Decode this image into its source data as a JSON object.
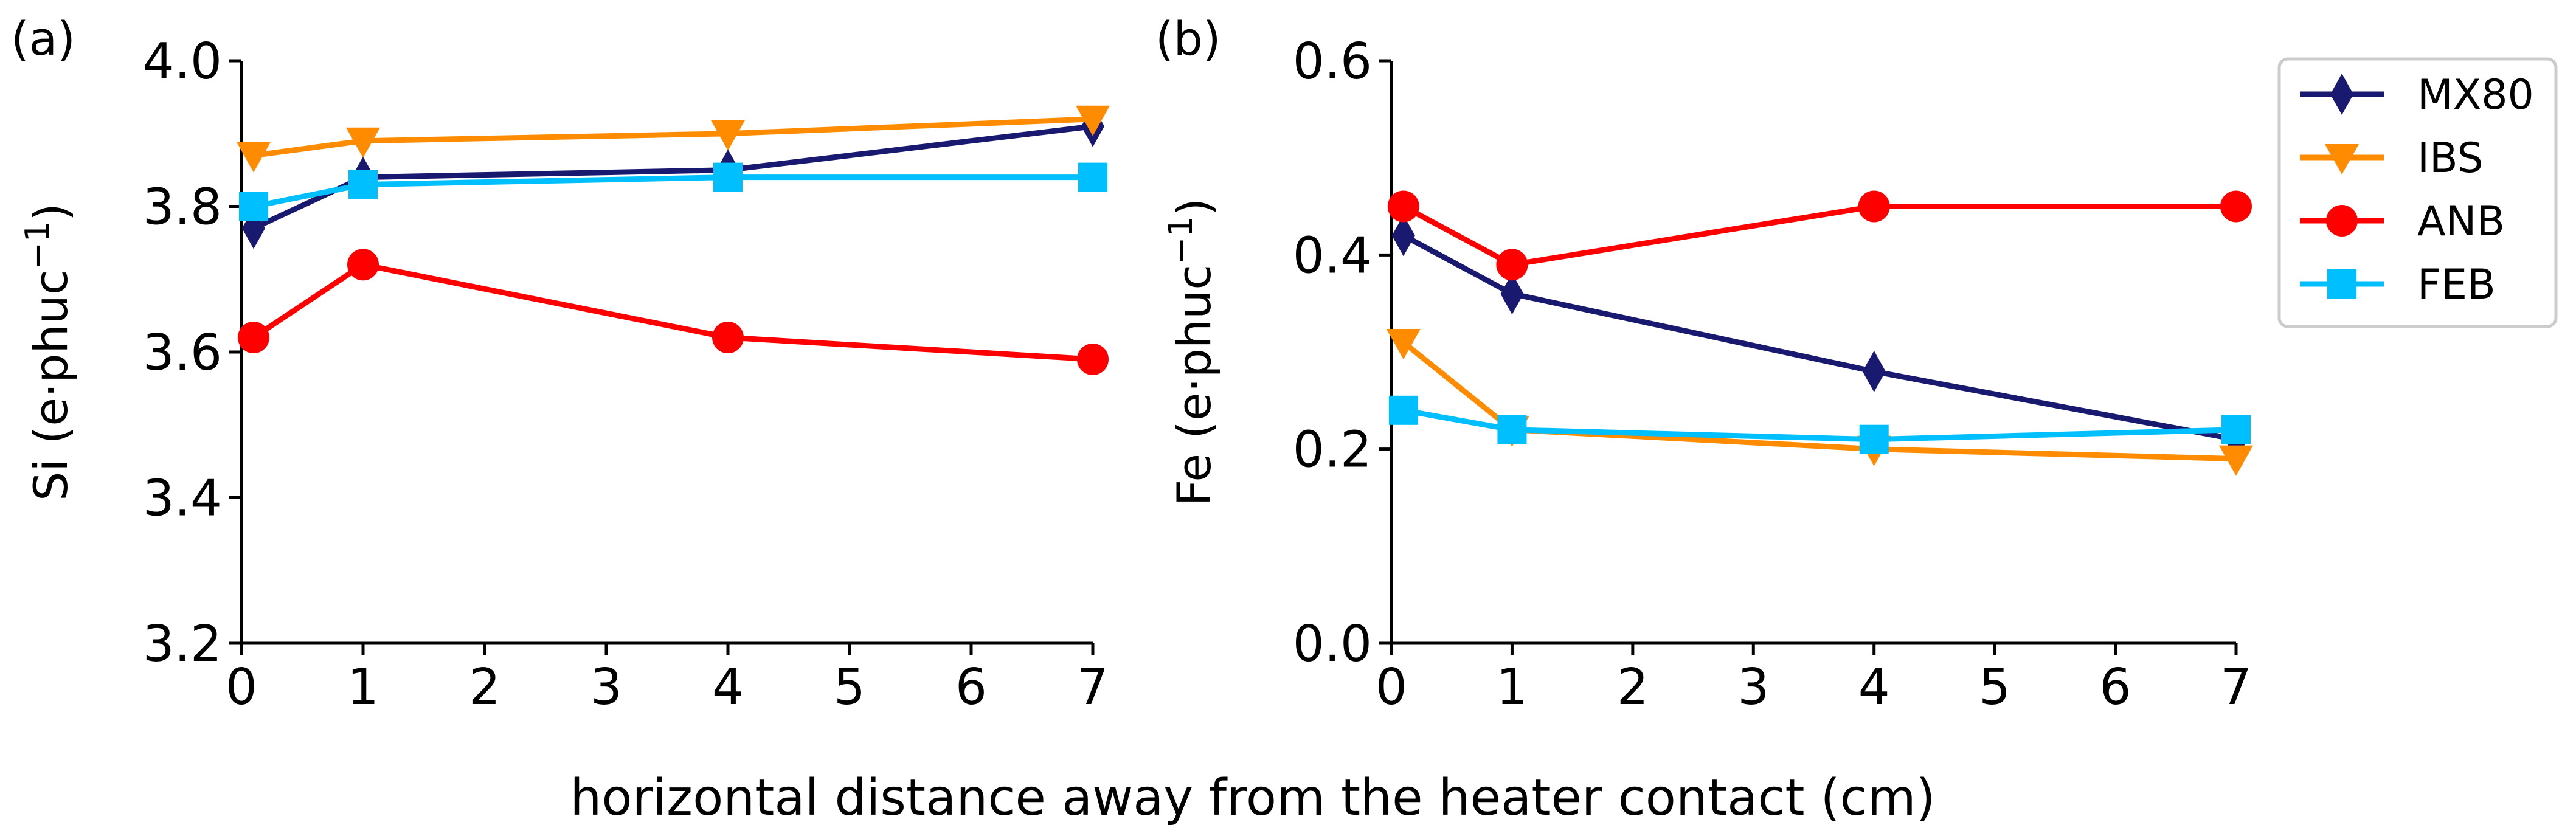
{
  "figure": {
    "shared_xlabel": "horizontal distance away from the heater contact (cm)"
  },
  "legend": {
    "entries": [
      {
        "name": "MX80",
        "color": "#191970",
        "marker": "diamond"
      },
      {
        "name": "IBS",
        "color": "#ff8c00",
        "marker": "triangle-down"
      },
      {
        "name": "ANB",
        "color": "#ff0000",
        "marker": "circle"
      },
      {
        "name": "FEB",
        "color": "#00bfff",
        "marker": "square"
      }
    ]
  },
  "chart_data": [
    {
      "type": "line",
      "panel_label": "(a)",
      "title": "",
      "xlabel": "horizontal distance away from the heater contact (cm)",
      "ylabel_main": "Si (e·phuc",
      "ylabel_sup": "−1",
      "ylabel_close": ")",
      "xlim": [
        0,
        7
      ],
      "ylim": [
        3.2,
        4.0
      ],
      "xticks": [
        0,
        1,
        2,
        3,
        4,
        5,
        6,
        7
      ],
      "xtick_labels": [
        "0",
        "1",
        "2",
        "3",
        "4",
        "5",
        "6",
        "7"
      ],
      "yticks": [
        3.2,
        3.4,
        3.6,
        3.8,
        4.0
      ],
      "ytick_labels": [
        "3.2",
        "3.4",
        "3.6",
        "3.8",
        "4.0"
      ],
      "x": [
        0.1,
        1,
        4,
        7
      ],
      "series": [
        {
          "name": "MX80",
          "values": [
            3.77,
            3.84,
            3.85,
            3.91
          ]
        },
        {
          "name": "IBS",
          "values": [
            3.87,
            3.89,
            3.9,
            3.92
          ]
        },
        {
          "name": "ANB",
          "values": [
            3.62,
            3.72,
            3.62,
            3.59
          ]
        },
        {
          "name": "FEB",
          "values": [
            3.8,
            3.83,
            3.84,
            3.84
          ]
        }
      ]
    },
    {
      "type": "line",
      "panel_label": "(b)",
      "title": "",
      "xlabel": "horizontal distance away from the heater contact (cm)",
      "ylabel_main": "Fe (e·phuc",
      "ylabel_sup": "−1",
      "ylabel_close": ")",
      "xlim": [
        0,
        7
      ],
      "ylim": [
        0.0,
        0.6
      ],
      "xticks": [
        0,
        1,
        2,
        3,
        4,
        5,
        6,
        7
      ],
      "xtick_labels": [
        "0",
        "1",
        "2",
        "3",
        "4",
        "5",
        "6",
        "7"
      ],
      "yticks": [
        0.0,
        0.2,
        0.4,
        0.6
      ],
      "ytick_labels": [
        "0.0",
        "0.2",
        "0.4",
        "0.6"
      ],
      "x": [
        0.1,
        1,
        4,
        7
      ],
      "series": [
        {
          "name": "MX80",
          "values": [
            0.42,
            0.36,
            0.28,
            0.21
          ]
        },
        {
          "name": "IBS",
          "values": [
            0.31,
            0.22,
            0.2,
            0.19
          ]
        },
        {
          "name": "ANB",
          "values": [
            0.45,
            0.39,
            0.45,
            0.45
          ]
        },
        {
          "name": "FEB",
          "values": [
            0.24,
            0.22,
            0.21,
            0.22
          ]
        }
      ]
    }
  ]
}
